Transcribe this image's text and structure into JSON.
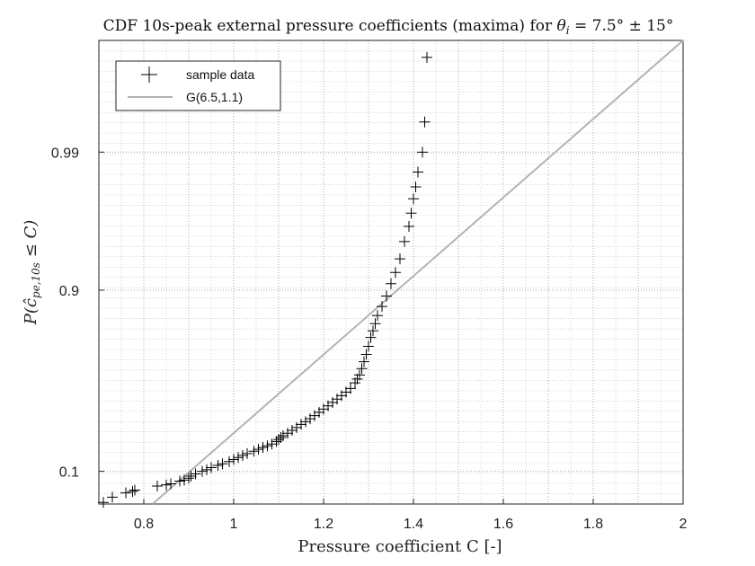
{
  "chart_data": {
    "type": "scatter",
    "title_prefix": "CDF 10s-peak external pressure coefficients (maxima) for ",
    "title_math_theta": "θ",
    "title_math_sub": "i",
    "title_math_rest": " = 7.5° ± 15°",
    "xlabel": "Pressure coefficient C [-]",
    "ylabel_prefix": "P(",
    "ylabel_chat": "ĉ",
    "ylabel_sub": "pe,10s",
    "ylabel_suffix": " ≤ C)",
    "xlim": [
      0.7,
      2.0
    ],
    "x_ticks": [
      0.8,
      1,
      1.2,
      1.4,
      1.6,
      1.8,
      2
    ],
    "x_tick_labels": [
      "0.8",
      "1",
      "1.2",
      "1.4",
      "1.6",
      "1.8",
      "2"
    ],
    "y_scale": "gumbel",
    "ylim": [
      0.018,
      0.9985
    ],
    "y_ticks": [
      0.1,
      0.9,
      0.99
    ],
    "y_tick_labels": [
      "0.1",
      "0.9",
      "0.99"
    ],
    "grid": true,
    "legend_position": "top-left",
    "series": [
      {
        "name": "sample data",
        "marker": "+",
        "color": "#000000",
        "x": [
          0.71,
          0.73,
          0.76,
          0.775,
          0.78,
          0.83,
          0.85,
          0.86,
          0.88,
          0.89,
          0.9,
          0.905,
          0.915,
          0.93,
          0.94,
          0.95,
          0.965,
          0.975,
          0.99,
          1.0,
          1.01,
          1.02,
          1.03,
          1.045,
          1.055,
          1.065,
          1.075,
          1.085,
          1.095,
          1.1,
          1.105,
          1.11,
          1.12,
          1.13,
          1.14,
          1.15,
          1.16,
          1.17,
          1.18,
          1.19,
          1.2,
          1.21,
          1.22,
          1.23,
          1.24,
          1.25,
          1.26,
          1.27,
          1.275,
          1.28,
          1.285,
          1.29,
          1.295,
          1.3,
          1.305,
          1.31,
          1.315,
          1.32,
          1.33,
          1.34,
          1.35,
          1.36,
          1.37,
          1.38,
          1.39,
          1.395,
          1.4,
          1.405,
          1.41,
          1.42,
          1.425,
          1.43
        ],
        "y": [
          0.02,
          0.028,
          0.036,
          0.039,
          0.042,
          0.052,
          0.055,
          0.058,
          0.066,
          0.069,
          0.075,
          0.082,
          0.09,
          0.1,
          0.106,
          0.115,
          0.125,
          0.132,
          0.142,
          0.152,
          0.162,
          0.172,
          0.182,
          0.195,
          0.205,
          0.215,
          0.225,
          0.235,
          0.25,
          0.262,
          0.274,
          0.285,
          0.3,
          0.318,
          0.335,
          0.355,
          0.372,
          0.39,
          0.41,
          0.43,
          0.45,
          0.47,
          0.49,
          0.51,
          0.53,
          0.55,
          0.57,
          0.6,
          0.62,
          0.64,
          0.67,
          0.7,
          0.73,
          0.76,
          0.79,
          0.81,
          0.83,
          0.85,
          0.87,
          0.89,
          0.91,
          0.925,
          0.94,
          0.955,
          0.965,
          0.972,
          0.978,
          0.982,
          0.986,
          0.99,
          0.994,
          0.998
        ]
      },
      {
        "name": "G(6.5,1.1)",
        "marker": "line",
        "color": "#b3b3b3",
        "x": [
          0.82,
          2.0
        ],
        "y": [
          0.0183,
          0.9985
        ]
      }
    ]
  }
}
